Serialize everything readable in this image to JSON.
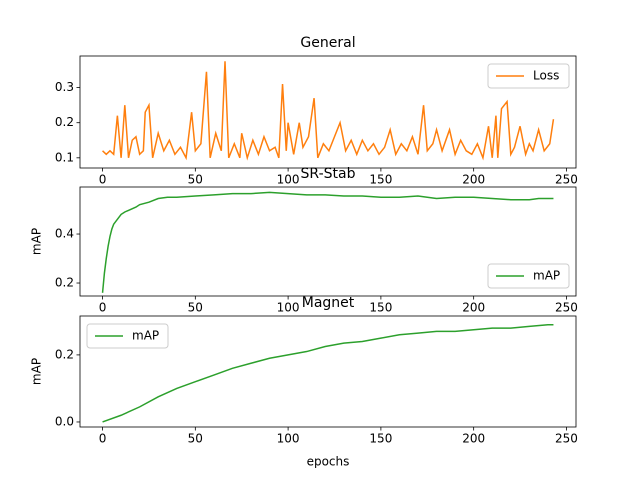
{
  "chart_data": [
    {
      "type": "line",
      "title": "General",
      "legend": "upper right",
      "xlim": [
        -12.15,
        255.15
      ],
      "xticks": [
        0,
        50,
        100,
        150,
        200,
        250
      ],
      "ylim": [
        0.071,
        0.39
      ],
      "yticks": [
        0.1,
        0.2,
        0.3
      ],
      "x": [
        0,
        2,
        4,
        6,
        8,
        10,
        12,
        14,
        16,
        18,
        20,
        22,
        23,
        25,
        27,
        30,
        33,
        36,
        39,
        42,
        45,
        48,
        50,
        53,
        56,
        58,
        61,
        64,
        66,
        68,
        71,
        74,
        75,
        78,
        81,
        84,
        87,
        90,
        93,
        95,
        97,
        99,
        100,
        103,
        106,
        108,
        111,
        114,
        116,
        119,
        122,
        125,
        128,
        131,
        134,
        137,
        140,
        143,
        146,
        149,
        152,
        155,
        158,
        161,
        164,
        167,
        170,
        173,
        175,
        178,
        180,
        183,
        187,
        190,
        193,
        196,
        199,
        202,
        205,
        208,
        210,
        212,
        213,
        215,
        218,
        220,
        222,
        225,
        228,
        230,
        232,
        235,
        238,
        241,
        243
      ],
      "series": [
        {
          "name": "Loss",
          "color": "#ff7f0e",
          "values": [
            0.12,
            0.11,
            0.12,
            0.11,
            0.22,
            0.1,
            0.25,
            0.1,
            0.15,
            0.16,
            0.11,
            0.12,
            0.23,
            0.25,
            0.1,
            0.17,
            0.12,
            0.15,
            0.11,
            0.13,
            0.1,
            0.23,
            0.12,
            0.14,
            0.345,
            0.1,
            0.17,
            0.12,
            0.375,
            0.1,
            0.14,
            0.1,
            0.17,
            0.1,
            0.15,
            0.11,
            0.16,
            0.12,
            0.13,
            0.1,
            0.31,
            0.12,
            0.2,
            0.11,
            0.2,
            0.13,
            0.16,
            0.27,
            0.1,
            0.14,
            0.12,
            0.16,
            0.2,
            0.12,
            0.15,
            0.11,
            0.15,
            0.12,
            0.14,
            0.11,
            0.13,
            0.18,
            0.11,
            0.14,
            0.12,
            0.16,
            0.11,
            0.25,
            0.12,
            0.14,
            0.18,
            0.12,
            0.18,
            0.11,
            0.15,
            0.12,
            0.11,
            0.14,
            0.1,
            0.19,
            0.1,
            0.22,
            0.1,
            0.24,
            0.26,
            0.11,
            0.13,
            0.19,
            0.11,
            0.14,
            0.12,
            0.18,
            0.12,
            0.14,
            0.21
          ]
        }
      ]
    },
    {
      "type": "line",
      "title": "SR-Stab",
      "y_label": "mAP",
      "legend": "lower right",
      "xlim": [
        -12.15,
        255.15
      ],
      "xticks": [
        0,
        50,
        100,
        150,
        200,
        250
      ],
      "ylim": [
        0.147,
        0.592
      ],
      "yticks": [
        0.2,
        0.4
      ],
      "x": [
        0,
        1,
        2,
        3,
        4,
        5,
        6,
        8,
        10,
        12,
        15,
        18,
        20,
        25,
        30,
        35,
        40,
        50,
        60,
        70,
        80,
        90,
        100,
        110,
        120,
        130,
        140,
        150,
        160,
        170,
        180,
        190,
        200,
        210,
        220,
        230,
        235,
        240,
        243
      ],
      "series": [
        {
          "name": "mAP",
          "color": "#2ca02c",
          "values": [
            0.16,
            0.24,
            0.3,
            0.35,
            0.39,
            0.42,
            0.44,
            0.46,
            0.48,
            0.49,
            0.5,
            0.51,
            0.52,
            0.53,
            0.545,
            0.55,
            0.55,
            0.555,
            0.56,
            0.565,
            0.565,
            0.57,
            0.565,
            0.56,
            0.56,
            0.555,
            0.555,
            0.55,
            0.55,
            0.555,
            0.545,
            0.55,
            0.55,
            0.545,
            0.54,
            0.54,
            0.545,
            0.545,
            0.545
          ]
        }
      ]
    },
    {
      "type": "line",
      "title": "Magnet",
      "y_label": "mAP",
      "x_label": "epochs",
      "legend": "upper left",
      "xlim": [
        -12.15,
        255.15
      ],
      "xticks": [
        0,
        50,
        100,
        150,
        200,
        250
      ],
      "ylim": [
        -0.015,
        0.316
      ],
      "yticks": [
        {
          "value": 0,
          "label": "0.0"
        },
        0.2
      ],
      "x": [
        0,
        10,
        20,
        30,
        40,
        50,
        60,
        70,
        80,
        90,
        100,
        110,
        120,
        130,
        140,
        150,
        160,
        170,
        180,
        190,
        200,
        210,
        220,
        230,
        240,
        243
      ],
      "series": [
        {
          "name": "mAP",
          "color": "#2ca02c",
          "values": [
            0.0,
            0.02,
            0.045,
            0.075,
            0.1,
            0.12,
            0.14,
            0.16,
            0.175,
            0.19,
            0.2,
            0.21,
            0.225,
            0.235,
            0.24,
            0.25,
            0.26,
            0.265,
            0.27,
            0.27,
            0.275,
            0.28,
            0.28,
            0.285,
            0.29,
            0.29
          ]
        }
      ]
    }
  ]
}
